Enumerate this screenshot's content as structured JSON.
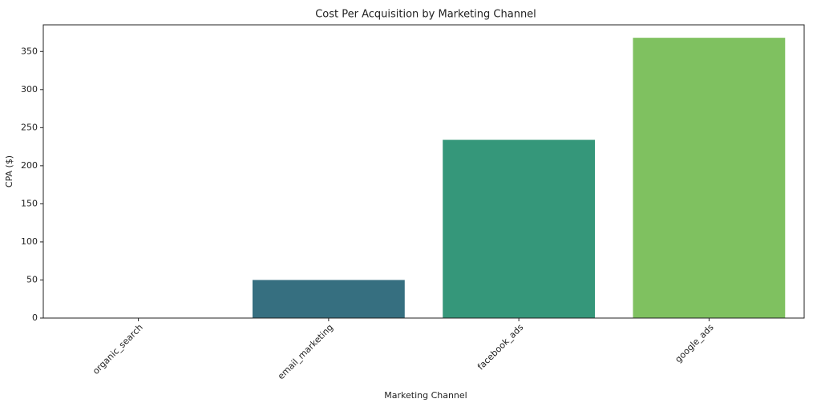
{
  "chart_data": {
    "type": "bar",
    "title": "Cost Per Acquisition by Marketing Channel",
    "x_label": "Marketing Channel",
    "y_label": "CPA ($)",
    "categories": [
      "organic_search",
      "email_marketing",
      "facebook_ads",
      "google_ads"
    ],
    "values": [
      0,
      50,
      234,
      368
    ],
    "colors": [
      "#3b528b",
      "#366f80",
      "#35977a",
      "#7fc160"
    ],
    "ylim": [
      0,
      385
    ],
    "yticks": [
      0,
      50,
      100,
      150,
      200,
      250,
      300,
      350
    ],
    "grid": false
  }
}
